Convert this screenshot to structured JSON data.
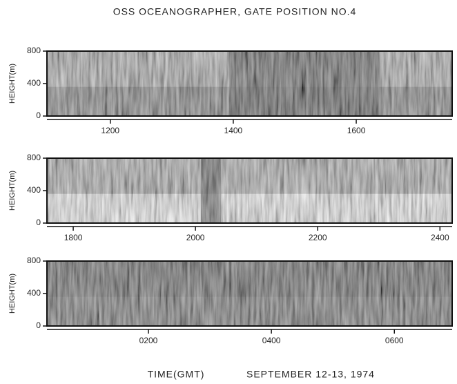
{
  "title": "OSS OCEANOGRAPHER, GATE POSITION NO.4",
  "xlabel": "TIME(GMT)",
  "caption": "SEPTEMBER 12-13, 1974",
  "chart_data": [
    {
      "type": "echogram",
      "ylabel": "HEIGHT(m)",
      "ylim": [
        0,
        800
      ],
      "yticks": [
        0,
        400,
        800
      ],
      "xlim": [
        10.97,
        17.56
      ],
      "xticks": [
        {
          "value": 12,
          "label": "1200"
        },
        {
          "value": 14,
          "label": "1400"
        },
        {
          "value": 16,
          "label": "1600"
        }
      ]
    },
    {
      "type": "echogram",
      "ylabel": "HEIGHT(m)",
      "ylim": [
        0,
        800
      ],
      "yticks": [
        0,
        400,
        800
      ],
      "xlim": [
        17.57,
        24.2
      ],
      "xticks": [
        {
          "value": 18,
          "label": "1800"
        },
        {
          "value": 20,
          "label": "2000"
        },
        {
          "value": 22,
          "label": "2200"
        },
        {
          "value": 24,
          "label": "2400"
        }
      ]
    },
    {
      "type": "echogram",
      "ylabel": "HEIGHT(m)",
      "ylim": [
        0,
        800
      ],
      "yticks": [
        0,
        400,
        800
      ],
      "xlim": [
        0.35,
        6.94
      ],
      "xticks": [
        {
          "value": 2,
          "label": "0200"
        },
        {
          "value": 4,
          "label": "0400"
        },
        {
          "value": 6,
          "label": "0600"
        }
      ]
    }
  ]
}
